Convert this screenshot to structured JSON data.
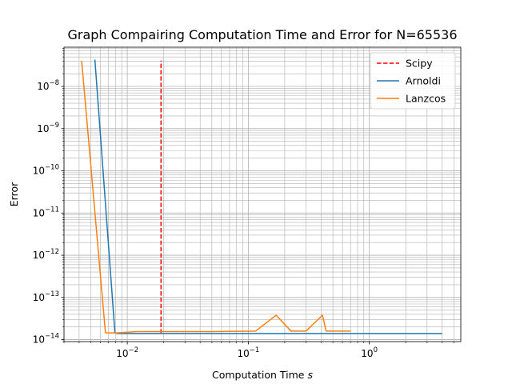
{
  "chart_data": {
    "type": "line",
    "title": "Graph Compairing Computation Time and Error for N=65536",
    "xlabel": "Computation Time",
    "xlabel_unit": "s",
    "ylabel": "Error",
    "xscale": "log",
    "yscale": "log",
    "xlim": [
      0.003,
      5.7
    ],
    "ylim": [
      9e-15,
      8.5e-08
    ],
    "grid": "major and minor",
    "legend_position": "top-right",
    "x_ticks": [
      {
        "value": 0.01,
        "base": "10",
        "exp": "−2"
      },
      {
        "value": 0.1,
        "base": "10",
        "exp": "−1"
      },
      {
        "value": 1,
        "base": "10",
        "exp": "0"
      }
    ],
    "y_ticks": [
      {
        "value": 1e-14,
        "base": "10",
        "exp": "−14"
      },
      {
        "value": 1e-13,
        "base": "10",
        "exp": "−13"
      },
      {
        "value": 1e-12,
        "base": "10",
        "exp": "−12"
      },
      {
        "value": 1e-11,
        "base": "10",
        "exp": "−11"
      },
      {
        "value": 1e-10,
        "base": "10",
        "exp": "−10"
      },
      {
        "value": 1e-09,
        "base": "10",
        "exp": "−9"
      },
      {
        "value": 1e-08,
        "base": "10",
        "exp": "−8"
      }
    ],
    "series": [
      {
        "name": "Scipy",
        "color": "#ff0000",
        "style": "dashed",
        "x": [
          0.019,
          0.019
        ],
        "y": [
          1.4e-14,
          4.1e-08
        ]
      },
      {
        "name": "Arnoldi",
        "color": "#1f77b4",
        "style": "solid",
        "x": [
          0.0054,
          0.0079,
          0.0082,
          0.012,
          0.1,
          1.0,
          4.0
        ],
        "y": [
          4.3e-08,
          1.5e-14,
          1.4e-14,
          1.4e-14,
          1.4e-14,
          1.4e-14,
          1.4e-14
        ]
      },
      {
        "name": "Lanzcos",
        "color": "#ff7f0e",
        "style": "solid",
        "x": [
          0.0042,
          0.0066,
          0.0082,
          0.012,
          0.02,
          0.05,
          0.115,
          0.17,
          0.225,
          0.3,
          0.41,
          0.44,
          0.7
        ],
        "y": [
          4e-08,
          1.45e-14,
          1.45e-14,
          1.55e-14,
          1.55e-14,
          1.55e-14,
          1.6e-14,
          3.8e-14,
          1.6e-14,
          1.6e-14,
          3.8e-14,
          1.6e-14,
          1.6e-14
        ]
      }
    ]
  }
}
